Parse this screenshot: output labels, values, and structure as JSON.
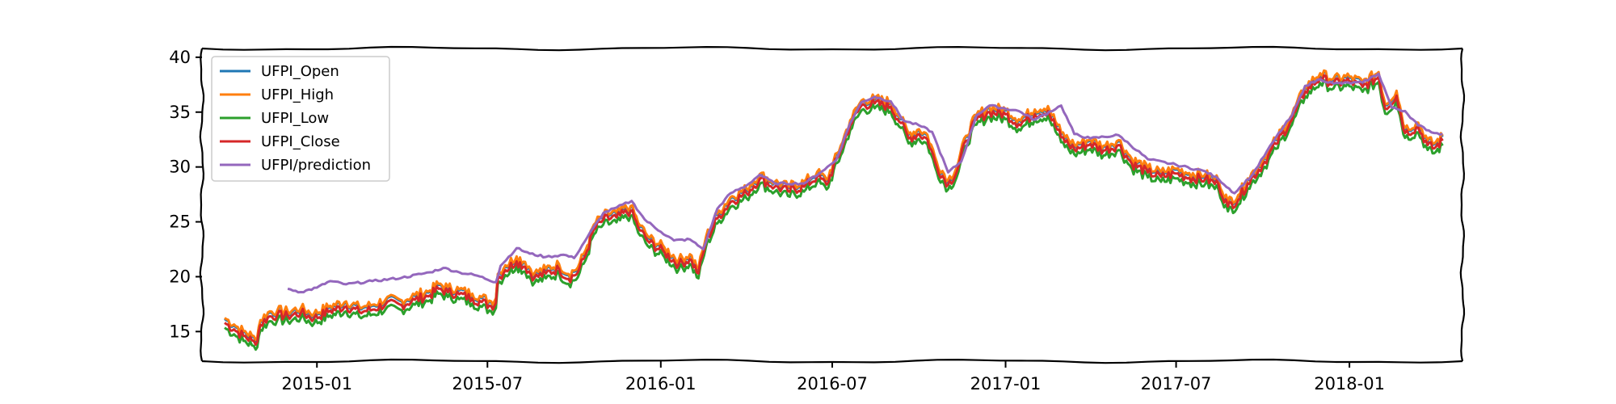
{
  "chart_data": {
    "type": "line",
    "style": "xkcd",
    "title": "",
    "xlabel": "",
    "ylabel": "",
    "xlim": [
      "2014-09-01",
      "2018-05-01"
    ],
    "ylim": [
      12.3,
      40.8
    ],
    "x_ticks": [
      "2015-01",
      "2015-07",
      "2016-01",
      "2016-07",
      "2017-01",
      "2017-07",
      "2018-01"
    ],
    "y_ticks": [
      15,
      20,
      25,
      30,
      35,
      40
    ],
    "grid": false,
    "legend_position": "top-left",
    "series": [
      {
        "name": "UFPI_Open",
        "color": "#1f77b4"
      },
      {
        "name": "UFPI_High",
        "color": "#ff7f0e"
      },
      {
        "name": "UFPI_Low",
        "color": "#2ca02c"
      },
      {
        "name": "UFPI_Close",
        "color": "#d62728"
      },
      {
        "name": "UFPI/prediction",
        "color": "#9467bd"
      }
    ],
    "close_points": [
      [
        "2014-09-25",
        15.8
      ],
      [
        "2014-10-05",
        15.2
      ],
      [
        "2014-10-15",
        14.6
      ],
      [
        "2014-10-24",
        14.2
      ],
      [
        "2014-10-28",
        13.8
      ],
      [
        "2014-11-02",
        15.6
      ],
      [
        "2014-11-10",
        16.3
      ],
      [
        "2014-11-20",
        16.5
      ],
      [
        "2014-12-01",
        16.4
      ],
      [
        "2014-12-15",
        16.7
      ],
      [
        "2014-12-29",
        16.2
      ],
      [
        "2015-01-15",
        16.9
      ],
      [
        "2015-02-01",
        17.3
      ],
      [
        "2015-02-15",
        16.8
      ],
      [
        "2015-03-01",
        17.0
      ],
      [
        "2015-03-15",
        17.5
      ],
      [
        "2015-04-01",
        17.4
      ],
      [
        "2015-04-15",
        17.9
      ],
      [
        "2015-05-01",
        18.3
      ],
      [
        "2015-05-10",
        18.9
      ],
      [
        "2015-05-20",
        18.6
      ],
      [
        "2015-06-01",
        18.4
      ],
      [
        "2015-06-15",
        18.0
      ],
      [
        "2015-06-25",
        17.7
      ],
      [
        "2015-07-05",
        17.3
      ],
      [
        "2015-07-10",
        17.6
      ],
      [
        "2015-07-12",
        19.8
      ],
      [
        "2015-07-20",
        20.6
      ],
      [
        "2015-08-01",
        21.4
      ],
      [
        "2015-08-10",
        20.9
      ],
      [
        "2015-08-20",
        19.9
      ],
      [
        "2015-09-01",
        20.3
      ],
      [
        "2015-09-15",
        20.7
      ],
      [
        "2015-09-25",
        19.8
      ],
      [
        "2015-10-05",
        20.4
      ],
      [
        "2015-10-15",
        22.4
      ],
      [
        "2015-10-22",
        24.3
      ],
      [
        "2015-11-01",
        25.2
      ],
      [
        "2015-11-15",
        25.4
      ],
      [
        "2015-11-30",
        26.0
      ],
      [
        "2015-12-10",
        24.2
      ],
      [
        "2015-12-20",
        23.1
      ],
      [
        "2016-01-05",
        22.2
      ],
      [
        "2016-01-20",
        21.1
      ],
      [
        "2016-02-01",
        21.6
      ],
      [
        "2016-02-10",
        20.3
      ],
      [
        "2016-02-18",
        23.2
      ],
      [
        "2016-03-01",
        25.3
      ],
      [
        "2016-03-15",
        26.8
      ],
      [
        "2016-04-01",
        27.6
      ],
      [
        "2016-04-15",
        28.9
      ],
      [
        "2016-05-01",
        28.2
      ],
      [
        "2016-05-15",
        27.8
      ],
      [
        "2016-06-01",
        28.2
      ],
      [
        "2016-06-15",
        29.1
      ],
      [
        "2016-06-25",
        28.4
      ],
      [
        "2016-07-10",
        31.5
      ],
      [
        "2016-07-20",
        33.8
      ],
      [
        "2016-08-01",
        35.6
      ],
      [
        "2016-08-15",
        35.8
      ],
      [
        "2016-09-01",
        35.5
      ],
      [
        "2016-09-12",
        34.0
      ],
      [
        "2016-09-20",
        32.6
      ],
      [
        "2016-10-01",
        33.0
      ],
      [
        "2016-10-10",
        32.5
      ],
      [
        "2016-10-20",
        30.0
      ],
      [
        "2016-11-01",
        28.4
      ],
      [
        "2016-11-10",
        29.5
      ],
      [
        "2016-11-20",
        32.4
      ],
      [
        "2016-12-01",
        34.3
      ],
      [
        "2016-12-15",
        35.0
      ],
      [
        "2017-01-01",
        34.8
      ],
      [
        "2017-01-15",
        33.9
      ],
      [
        "2017-02-01",
        34.8
      ],
      [
        "2017-02-15",
        35.1
      ],
      [
        "2017-03-01",
        32.7
      ],
      [
        "2017-03-15",
        31.6
      ],
      [
        "2017-04-01",
        32.1
      ],
      [
        "2017-04-15",
        31.5
      ],
      [
        "2017-05-01",
        32.0
      ],
      [
        "2017-05-15",
        30.3
      ],
      [
        "2017-06-01",
        29.5
      ],
      [
        "2017-06-15",
        29.1
      ],
      [
        "2017-07-01",
        29.4
      ],
      [
        "2017-07-15",
        29.0
      ],
      [
        "2017-08-01",
        28.9
      ],
      [
        "2017-08-15",
        28.4
      ],
      [
        "2017-08-25",
        26.4
      ],
      [
        "2017-09-05",
        27.0
      ],
      [
        "2017-09-15",
        28.5
      ],
      [
        "2017-10-01",
        30.2
      ],
      [
        "2017-10-15",
        32.1
      ],
      [
        "2017-11-01",
        34.3
      ],
      [
        "2017-11-15",
        36.9
      ],
      [
        "2017-12-01",
        38.1
      ],
      [
        "2017-12-15",
        37.6
      ],
      [
        "2018-01-01",
        37.8
      ],
      [
        "2018-01-15",
        37.3
      ],
      [
        "2018-02-01",
        38.2
      ],
      [
        "2018-02-08",
        35.3
      ],
      [
        "2018-02-20",
        36.5
      ],
      [
        "2018-03-01",
        33.1
      ],
      [
        "2018-03-15",
        33.6
      ],
      [
        "2018-03-25",
        32.0
      ],
      [
        "2018-04-01",
        31.7
      ],
      [
        "2018-04-10",
        32.4
      ]
    ],
    "prediction_points": [
      [
        "2014-12-01",
        18.9
      ],
      [
        "2014-12-15",
        18.6
      ],
      [
        "2015-01-01",
        19.0
      ],
      [
        "2015-01-15",
        19.6
      ],
      [
        "2015-02-01",
        19.3
      ],
      [
        "2015-03-01",
        19.6
      ],
      [
        "2015-04-01",
        19.9
      ],
      [
        "2015-05-01",
        20.4
      ],
      [
        "2015-05-15",
        20.8
      ],
      [
        "2015-06-01",
        20.4
      ],
      [
        "2015-06-20",
        20.1
      ],
      [
        "2015-07-10",
        19.5
      ],
      [
        "2015-07-15",
        21.0
      ],
      [
        "2015-08-01",
        22.6
      ],
      [
        "2015-08-15",
        22.1
      ],
      [
        "2015-09-01",
        21.8
      ],
      [
        "2015-09-20",
        22.0
      ],
      [
        "2015-10-01",
        21.7
      ],
      [
        "2015-10-15",
        23.6
      ],
      [
        "2015-11-01",
        25.8
      ],
      [
        "2015-11-15",
        26.3
      ],
      [
        "2015-12-01",
        26.9
      ],
      [
        "2015-12-15",
        25.2
      ],
      [
        "2016-01-01",
        24.1
      ],
      [
        "2016-01-15",
        23.3
      ],
      [
        "2016-02-01",
        23.4
      ],
      [
        "2016-02-15",
        22.5
      ],
      [
        "2016-03-01",
        26.2
      ],
      [
        "2016-03-15",
        27.6
      ],
      [
        "2016-04-01",
        28.3
      ],
      [
        "2016-04-15",
        29.3
      ],
      [
        "2016-05-01",
        28.5
      ],
      [
        "2016-06-01",
        28.5
      ],
      [
        "2016-06-20",
        29.6
      ],
      [
        "2016-07-05",
        30.6
      ],
      [
        "2016-07-20",
        34.0
      ],
      [
        "2016-08-01",
        35.9
      ],
      [
        "2016-08-15",
        36.4
      ],
      [
        "2016-09-01",
        36.0
      ],
      [
        "2016-09-15",
        34.2
      ],
      [
        "2016-10-01",
        33.8
      ],
      [
        "2016-10-15",
        33.2
      ],
      [
        "2016-11-01",
        29.5
      ],
      [
        "2016-11-15",
        30.5
      ],
      [
        "2016-12-01",
        34.7
      ],
      [
        "2016-12-15",
        35.6
      ],
      [
        "2017-01-15",
        35.1
      ],
      [
        "2017-02-01",
        34.3
      ],
      [
        "2017-03-01",
        35.6
      ],
      [
        "2017-03-15",
        33.0
      ],
      [
        "2017-04-01",
        32.6
      ],
      [
        "2017-05-01",
        32.9
      ],
      [
        "2017-06-01",
        30.7
      ],
      [
        "2017-07-01",
        30.2
      ],
      [
        "2017-08-01",
        29.6
      ],
      [
        "2017-08-15",
        28.9
      ],
      [
        "2017-09-01",
        27.6
      ],
      [
        "2017-09-20",
        29.3
      ],
      [
        "2017-10-15",
        32.7
      ],
      [
        "2017-11-01",
        34.7
      ],
      [
        "2017-11-15",
        37.4
      ],
      [
        "2017-12-01",
        38.0
      ],
      [
        "2017-12-15",
        37.6
      ],
      [
        "2018-01-15",
        37.7
      ],
      [
        "2018-02-01",
        38.5
      ],
      [
        "2018-02-15",
        35.4
      ],
      [
        "2018-03-01",
        35.1
      ],
      [
        "2018-03-15",
        33.8
      ],
      [
        "2018-04-01",
        33.1
      ],
      [
        "2018-04-10",
        33.0
      ]
    ]
  }
}
